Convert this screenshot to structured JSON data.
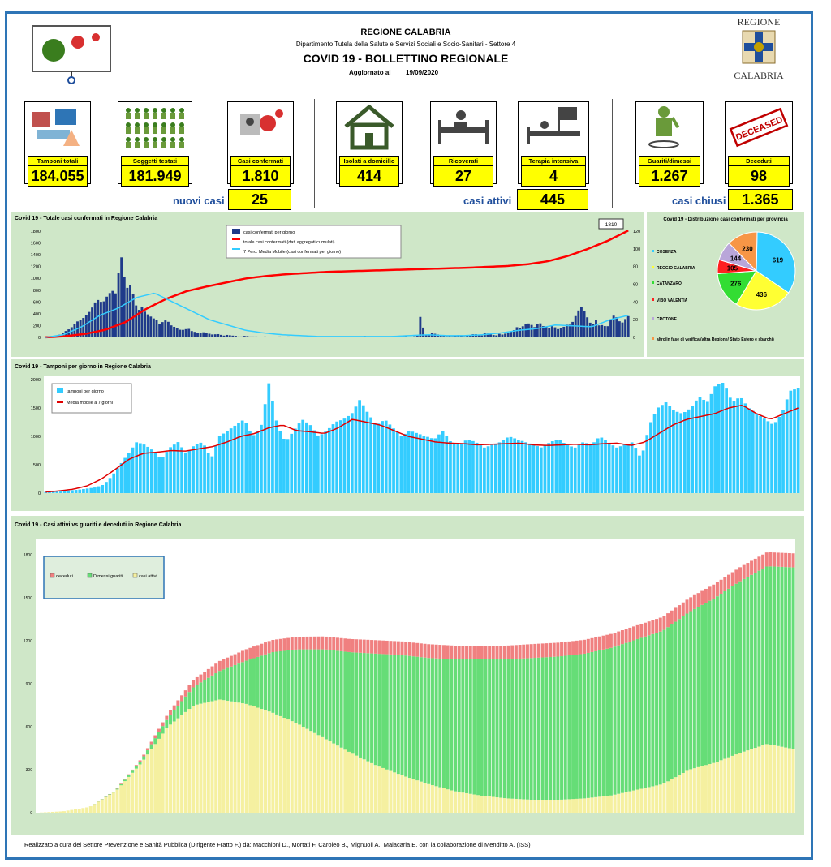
{
  "header": {
    "org": "REGIONE CALABRIA",
    "department": "Dipartimento Tutela della Salute e Servizi Sociali e Socio-Sanitari - Settore 4",
    "title": "COVID 19 - BOLLETTINO REGIONALE",
    "updated_label": "Aggiornato al",
    "updated_date": "19/09/2020",
    "logo_top": "REGIONE",
    "logo_bottom": "CALABRIA"
  },
  "cards": [
    {
      "label": "Tamponi totali",
      "value": "184.055",
      "icon": "lab-test-icon"
    },
    {
      "label": "Soggetti testati",
      "value": "181.949",
      "icon": "people-grid-icon"
    },
    {
      "label": "Casi confermati",
      "value": "1.810",
      "icon": "virus-confirmed-icon"
    },
    {
      "label": "Isolati a domicilio",
      "value": "414",
      "icon": "house-icon"
    },
    {
      "label": "Ricoverati",
      "value": "27",
      "icon": "hospital-bed-icon"
    },
    {
      "label": "Terapia intensiva",
      "value": "4",
      "icon": "intensive-care-icon"
    },
    {
      "label": "Guariti/dimessi",
      "value": "1.267",
      "icon": "recovered-person-icon"
    },
    {
      "label": "Deceduti",
      "value": "98",
      "icon": "deceased-stamp-icon"
    }
  ],
  "deceased_stamp": "DECEASED",
  "summary": {
    "new_label": "nuovi casi",
    "new_value": "25",
    "active_label": "casi attivi",
    "active_value": "445",
    "closed_label": "casi chiusi",
    "closed_value": "1.365"
  },
  "chart1": {
    "title": "Covid 19 - Totale casi confermati in Regione Calabria",
    "callout": "1810",
    "legend": [
      "casi confermati per giorno",
      "totale casi confermati (dati aggregati cumulati)",
      "7 Perc. Media Mobile (casi confermati per giorno)"
    ],
    "left_ticks": [
      "1800",
      "1600",
      "1400",
      "1200",
      "1000",
      "800",
      "600",
      "400",
      "200",
      "0"
    ],
    "right_ticks": [
      "120",
      "100",
      "80",
      "60",
      "40",
      "20",
      "0"
    ],
    "colors": {
      "bars": "#1f3a8a",
      "cumulative": "#ff0000",
      "moving_avg": "#33ccff"
    }
  },
  "chart2": {
    "title": "Covid 19 - Distribuzione casi confermati per provincia",
    "legend": [
      "COSENZA",
      "REGGIO CALABRIA",
      "CATANZARO",
      "VIBO VALENTIA",
      "CROTONE",
      "altro/in fase di verifica (altra Regione/ Stato Estero e sbarchi)"
    ]
  },
  "chart3": {
    "title": "Covid 19 - Tamponi per giorno in Regione Calabria",
    "legend": [
      "tamponi per giorno",
      "Media mobile a 7 giorni"
    ],
    "ticks": [
      "2000",
      "1500",
      "1000",
      "500",
      "0"
    ],
    "colors": {
      "bars": "#33ccff",
      "avg": "#e00000"
    }
  },
  "chart4": {
    "title": "Covid 19 - Casi attivi vs guariti e deceduti in Regione Calabria",
    "legend": [
      "deceduti",
      "Dimessi guariti",
      "casi attivi"
    ],
    "ticks": [
      "1800",
      "1500",
      "1200",
      "900",
      "600",
      "300",
      "0"
    ],
    "colors": {
      "deceased": "#f08080",
      "recovered": "#66dd77",
      "active": "#f5f0a0"
    }
  },
  "chart_data": [
    {
      "type": "bar",
      "title": "Covid 19 - Totale casi confermati in Regione Calabria",
      "series": [
        {
          "name": "casi confermati per giorno",
          "axis": "right",
          "values": [
            0,
            0,
            1,
            2,
            3,
            5,
            8,
            10,
            14,
            18,
            20,
            23,
            27,
            33,
            40,
            43,
            38,
            45,
            50,
            53,
            48,
            99,
            70,
            55,
            60,
            40,
            30,
            35,
            28,
            25,
            22,
            20,
            15,
            18,
            20,
            14,
            12,
            10,
            8,
            9,
            10,
            7,
            6,
            5,
            6,
            5,
            4,
            3,
            4,
            3,
            2,
            3,
            2,
            2,
            1,
            1,
            2,
            1,
            1,
            1,
            0,
            1,
            1,
            0,
            0,
            1,
            1,
            0,
            1,
            0,
            0,
            0,
            0,
            0,
            1,
            0,
            0,
            0,
            0,
            1,
            0,
            0,
            1,
            0,
            0,
            0,
            1,
            0,
            0,
            2,
            1,
            0,
            1,
            1,
            0,
            1,
            0,
            0,
            0,
            1,
            2,
            1,
            0,
            1,
            2,
            27,
            3,
            2,
            5,
            4,
            3,
            2,
            1,
            2,
            1,
            2,
            3,
            1,
            2,
            3,
            4,
            3,
            2,
            5,
            4,
            3,
            2,
            4,
            3,
            5,
            6,
            8,
            12,
            10,
            15,
            16,
            14,
            11,
            18,
            13,
            12,
            10,
            14,
            9,
            10,
            12,
            15,
            14,
            22,
            30,
            35,
            28,
            18,
            14,
            20,
            12,
            15,
            10,
            20,
            25,
            22,
            15,
            20,
            24
          ]
        },
        {
          "name": "totale casi confermati (dati aggregati cumulati)",
          "axis": "left",
          "values": [
            1,
            20,
            60,
            130,
            260,
            480,
            650,
            780,
            860,
            930,
            1000,
            1040,
            1070,
            1090,
            1110,
            1120,
            1130,
            1140,
            1150,
            1160,
            1170,
            1180,
            1195,
            1210,
            1240,
            1290,
            1380,
            1500,
            1640,
            1810
          ]
        },
        {
          "name": "7 Perc. Media Mobile (casi confermati per giorno)",
          "axis": "right",
          "values": [
            0,
            3,
            12,
            25,
            33,
            45,
            50,
            40,
            30,
            20,
            14,
            8,
            5,
            3,
            2,
            1,
            1,
            1,
            1,
            1,
            2,
            3,
            2,
            2,
            3,
            5,
            8,
            10,
            14,
            13,
            12,
            20,
            25
          ]
        }
      ],
      "ylim_left": [
        0,
        1800
      ],
      "ylim_right": [
        0,
        120
      ]
    },
    {
      "type": "pie",
      "title": "Covid 19 - Distribuzione casi confermati per provincia",
      "categories": [
        "COSENZA",
        "REGGIO CALABRIA",
        "CATANZARO",
        "VIBO VALENTIA",
        "CROTONE",
        "altro/in fase di verifica (altra Regione/ Stato Estero e sbarchi)"
      ],
      "values": [
        619,
        436,
        276,
        105,
        144,
        230
      ],
      "colors": [
        "#33ccff",
        "#ffff33",
        "#33dd33",
        "#ff2020",
        "#b9a6d9",
        "#f79646"
      ]
    },
    {
      "type": "bar",
      "title": "Covid 19 - Tamponi per giorno in Regione Calabria",
      "series": [
        {
          "name": "tamponi per giorno",
          "values": [
            20,
            30,
            40,
            50,
            60,
            80,
            100,
            150,
            300,
            500,
            700,
            900,
            850,
            750,
            600,
            800,
            900,
            700,
            850,
            900,
            600,
            1000,
            1100,
            1200,
            1300,
            1000,
            1150,
            1950,
            1200,
            900,
            1100,
            1300,
            1200,
            1000,
            1100,
            1250,
            1300,
            1400,
            1650,
            1400,
            1200,
            1300,
            1150,
            1000,
            1100,
            1050,
            1000,
            950,
            1100,
            900,
            850,
            950,
            900,
            800,
            850,
            900,
            1000,
            950,
            900,
            850,
            800,
            900,
            950,
            850,
            800,
            900,
            850,
            1000,
            900,
            800,
            850,
            900,
            600,
            1200,
            1500,
            1600,
            1450,
            1400,
            1500,
            1700,
            1600,
            1900,
            1950,
            1600,
            1700,
            1500,
            1400,
            1300,
            1200,
            1400,
            1800,
            1850
          ]
        },
        {
          "name": "Media mobile a 7 giorni",
          "values": [
            20,
            40,
            70,
            130,
            250,
            420,
            600,
            700,
            720,
            750,
            740,
            780,
            820,
            900,
            1000,
            1050,
            1150,
            1200,
            1100,
            1080,
            1050,
            1150,
            1300,
            1250,
            1200,
            1100,
            1000,
            950,
            900,
            880,
            870,
            850,
            860,
            870,
            880,
            850,
            840,
            850,
            860,
            850,
            870,
            880,
            840,
            900,
            1050,
            1200,
            1300,
            1350,
            1400,
            1500,
            1550,
            1400,
            1300,
            1400,
            1500
          ]
        }
      ],
      "ylim": [
        0,
        2000
      ]
    },
    {
      "type": "area",
      "title": "Covid 19 - Casi attivi vs guariti e deceduti in Regione Calabria",
      "series": [
        {
          "name": "casi attivi",
          "values": [
            0,
            10,
            40,
            150,
            350,
            600,
            750,
            790,
            760,
            700,
            620,
            520,
            420,
            330,
            260,
            200,
            150,
            120,
            100,
            90,
            90,
            100,
            120,
            160,
            200,
            300,
            350,
            420,
            480,
            445
          ]
        },
        {
          "name": "Dimessi guariti",
          "values": [
            0,
            0,
            0,
            5,
            20,
            60,
            130,
            200,
            300,
            420,
            520,
            620,
            700,
            780,
            840,
            880,
            920,
            950,
            970,
            990,
            1000,
            1010,
            1030,
            1050,
            1070,
            1100,
            1150,
            1200,
            1240,
            1267
          ]
        },
        {
          "name": "deceduti",
          "values": [
            0,
            0,
            0,
            2,
            10,
            30,
            50,
            70,
            80,
            85,
            88,
            90,
            92,
            94,
            95,
            96,
            96,
            96,
            96,
            97,
            97,
            97,
            97,
            97,
            97,
            97,
            98,
            98,
            98,
            98
          ]
        }
      ],
      "ylim": [
        0,
        1800
      ]
    }
  ],
  "footer": "Realizzato a cura del Settore Prevenzione e Sanità Pubblica (Dirigente Fratto F.) da: Macchioni D., Mortati F. Caroleo B., Mignuoli A., Malacaria E. con la collaborazione di Menditto A. (ISS)"
}
